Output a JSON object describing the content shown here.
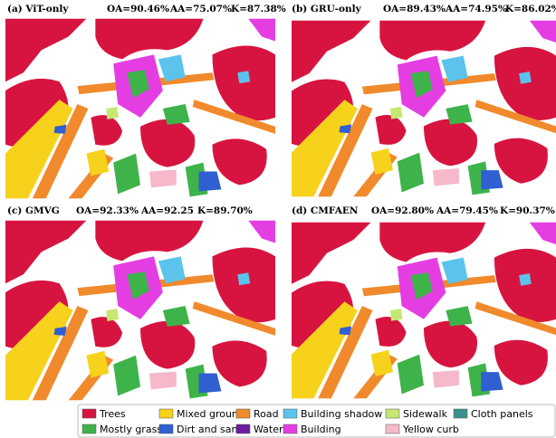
{
  "panels": [
    {
      "label": "(a) ViT-only",
      "oa": "OA=90.46%",
      "aa": "AA=75.07%",
      "k": "K=87.38%"
    },
    {
      "label": "(b) GRU-only",
      "oa": "OA=89.43%",
      "aa": "AA=74.95%",
      "k": "K=86.02%"
    },
    {
      "label": "(c) GMVG",
      "oa": "OA=92.33%",
      "aa": "AA=92.25",
      "k": "K=89.70%"
    },
    {
      "label": "(d) CMFAEN",
      "oa": "OA=92.80%",
      "aa": "AA=79.45%",
      "k": "K=90.37%"
    }
  ],
  "legend": [
    {
      "name": "Trees",
      "color": "#d7143f"
    },
    {
      "name": "Mostly grass",
      "color": "#3db34a"
    },
    {
      "name": "Mixed ground",
      "color": "#f7d21c"
    },
    {
      "name": "Dirt and sand",
      "color": "#2f5fd0"
    },
    {
      "name": "Road",
      "color": "#f08a2c"
    },
    {
      "name": "Water",
      "color": "#6b1ea0"
    },
    {
      "name": "Building shadow",
      "color": "#5cc3ec"
    },
    {
      "name": "Building",
      "color": "#e43ee3"
    },
    {
      "name": "Sidewalk",
      "color": "#c6e873"
    },
    {
      "name": "Yellow curb",
      "color": "#f6b9ca"
    },
    {
      "name": "Cloth panels",
      "color": "#3b918b"
    }
  ]
}
